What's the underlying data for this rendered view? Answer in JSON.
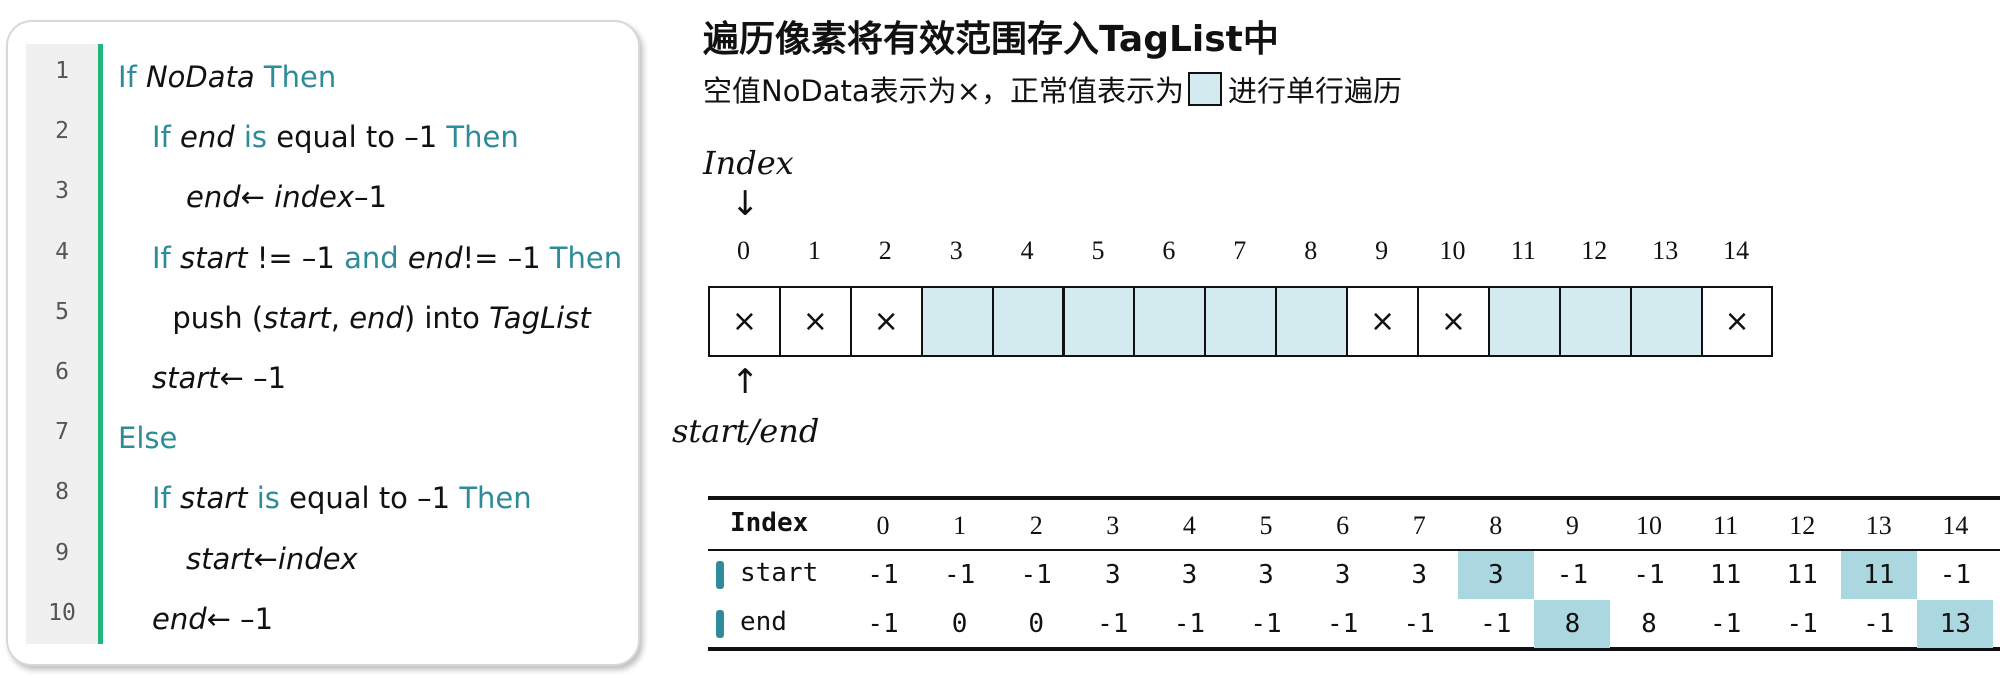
{
  "code": {
    "lines": [
      {
        "n": "1",
        "parts": [
          {
            "t": "If ",
            "k": "kw"
          },
          {
            "t": "NoData",
            "k": "it"
          },
          {
            "t": " Then",
            "k": "kw"
          }
        ],
        "indent": 0
      },
      {
        "n": "2",
        "parts": [
          {
            "t": "If ",
            "k": "kw"
          },
          {
            "t": "end",
            "k": "it"
          },
          {
            "t": " is",
            "k": "kw"
          },
          {
            "t": " equal to –1 ",
            "k": ""
          },
          {
            "t": "Then",
            "k": "kw"
          }
        ],
        "indent": 1
      },
      {
        "n": "3",
        "parts": [
          {
            "t": "end",
            "k": "it"
          },
          {
            "t": "← ",
            "k": ""
          },
          {
            "t": "index",
            "k": "it"
          },
          {
            "t": "–1",
            "k": ""
          }
        ],
        "indent": 2
      },
      {
        "n": "4",
        "parts": [
          {
            "t": "If ",
            "k": "kw"
          },
          {
            "t": "start",
            "k": "it"
          },
          {
            "t": " != –1 ",
            "k": ""
          },
          {
            "t": "and ",
            "k": "kw"
          },
          {
            "t": "end",
            "k": "it"
          },
          {
            "t": "!= –1 ",
            "k": ""
          },
          {
            "t": "Then",
            "k": "kw"
          }
        ],
        "indent": 1
      },
      {
        "n": "5",
        "parts": [
          {
            "t": "push (",
            "k": ""
          },
          {
            "t": "start",
            "k": "it"
          },
          {
            "t": ", ",
            "k": ""
          },
          {
            "t": "end",
            "k": "it"
          },
          {
            "t": ") into ",
            "k": ""
          },
          {
            "t": "TagList",
            "k": "it"
          }
        ],
        "indent": 1.6
      },
      {
        "n": "6",
        "parts": [
          {
            "t": "start",
            "k": "it"
          },
          {
            "t": "← –1",
            "k": ""
          }
        ],
        "indent": 1
      },
      {
        "n": "7",
        "parts": [
          {
            "t": "Else",
            "k": "kw"
          }
        ],
        "indent": 0
      },
      {
        "n": "8",
        "parts": [
          {
            "t": "If ",
            "k": "kw"
          },
          {
            "t": "start",
            "k": "it"
          },
          {
            "t": " is",
            "k": "kw"
          },
          {
            "t": " equal to –1 ",
            "k": ""
          },
          {
            "t": "Then",
            "k": "kw"
          }
        ],
        "indent": 1
      },
      {
        "n": "9",
        "parts": [
          {
            "t": "start",
            "k": "it"
          },
          {
            "t": "←",
            "k": ""
          },
          {
            "t": "index",
            "k": "it"
          }
        ],
        "indent": 2
      },
      {
        "n": "10",
        "parts": [
          {
            "t": "end",
            "k": "it"
          },
          {
            "t": "← –1",
            "k": ""
          }
        ],
        "indent": 1
      }
    ]
  },
  "title": "遍历像素将有效范围存入TagList中",
  "subtitle": {
    "before": "空值NoData表示为×，正常值表示为",
    "after": " 进行单行遍历"
  },
  "index_label": "Index",
  "start_end_label": "start/end",
  "arrow_down": "↓",
  "arrow_up": "↑",
  "nodata_symbol": "×",
  "cells": {
    "indices": [
      "0",
      "1",
      "2",
      "3",
      "4",
      "5",
      "6",
      "7",
      "8",
      "9",
      "10",
      "11",
      "12",
      "13",
      "14"
    ],
    "is_nodata": [
      true,
      true,
      true,
      false,
      false,
      false,
      false,
      false,
      false,
      true,
      true,
      false,
      false,
      false,
      true
    ]
  },
  "table": {
    "header_label": "Index",
    "columns": [
      "0",
      "1",
      "2",
      "3",
      "4",
      "5",
      "6",
      "7",
      "8",
      "9",
      "10",
      "11",
      "12",
      "13",
      "14"
    ],
    "rows": [
      {
        "label": "start",
        "values": [
          "-1",
          "-1",
          "-1",
          "3",
          "3",
          "3",
          "3",
          "3",
          "3",
          "-1",
          "-1",
          "11",
          "11",
          "11",
          "-1"
        ],
        "highlight": [
          8,
          13
        ]
      },
      {
        "label": "end",
        "values": [
          "-1",
          "0",
          "0",
          "-1",
          "-1",
          "-1",
          "-1",
          "-1",
          "-1",
          "8",
          "8",
          "-1",
          "-1",
          "-1",
          "13"
        ],
        "highlight": [
          9,
          14
        ]
      }
    ]
  },
  "colors": {
    "keyword": "#2e8b9a",
    "valid_cell": "#d3ebee",
    "highlight": "#abd8e0",
    "gutter_bar": "#1db87a"
  }
}
